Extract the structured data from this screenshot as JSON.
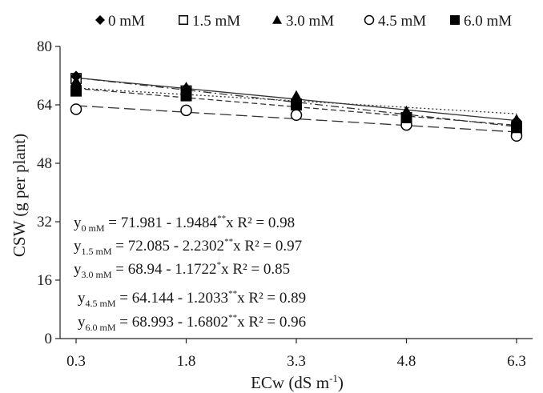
{
  "chart_data": {
    "type": "scatter",
    "xlabel_main": "ECw (dS m",
    "xlabel_sup": "-1",
    "xlabel_end": ")",
    "ylabel": "CSW (g per plant)",
    "x_ticks": [
      "0.3",
      "1.8",
      "3.3",
      "4.8",
      "6.3"
    ],
    "y_ticks": [
      "0",
      "16",
      "32",
      "48",
      "64",
      "80"
    ],
    "xlim": [
      0.3,
      6.3
    ],
    "ylim": [
      0,
      80
    ],
    "x": [
      0.3,
      1.8,
      3.3,
      4.8,
      6.3
    ],
    "legend_position": "top",
    "series": [
      {
        "name": "0 mM",
        "marker": "diamond",
        "values": [
          71.8,
          68.5,
          65.2,
          61.0,
          59.5
        ],
        "fit": {
          "intercept": 71.981,
          "slope": -1.9484
        },
        "line_style": "solid",
        "eq": {
          "sub": "0 mM",
          "lead": " = 71.981 - 1.9484",
          "stars": "**",
          "tail": "x  R² = 0.98"
        }
      },
      {
        "name": "1.5 mM",
        "marker": "square-open",
        "values": [
          71.2,
          67.8,
          64.0,
          60.5,
          57.5
        ],
        "fit": {
          "intercept": 72.085,
          "slope": -2.2302
        },
        "line_style": "dashdot",
        "eq": {
          "sub": "1.5 mM",
          "lead": " = 72.085 - 2.2302",
          "stars": "**",
          "tail": "x  R² = 0.97"
        }
      },
      {
        "name": "3.0 mM",
        "marker": "triangle",
        "values": [
          70.5,
          68.8,
          66.5,
          62.3,
          60.0
        ],
        "fit": {
          "intercept": 68.94,
          "slope": -1.1722
        },
        "line_style": "dotted",
        "eq": {
          "sub": "3.0 mM",
          "lead": " = 68.94 - 1.1722",
          "stars": "*",
          "tail": "x R² = 0.85"
        }
      },
      {
        "name": "4.5 mM",
        "marker": "circle-open",
        "values": [
          62.8,
          62.5,
          61.2,
          58.5,
          55.5
        ],
        "fit": {
          "intercept": 64.144,
          "slope": -1.2033
        },
        "line_style": "longdash",
        "eq": {
          "sub": "4.5 mM",
          "lead": "  = 64.144 - 1.2033",
          "stars": "**",
          "tail": "x R² = 0.89"
        }
      },
      {
        "name": "6.0 mM",
        "marker": "square",
        "values": [
          67.8,
          66.5,
          64.2,
          60.5,
          57.8
        ],
        "fit": {
          "intercept": 68.993,
          "slope": -1.6802
        },
        "line_style": "dash",
        "eq": {
          "sub": "6.0 mM",
          "lead": " = 68.993 - 1.6802",
          "stars": "**",
          "tail": "x R² = 0.96"
        }
      }
    ]
  }
}
